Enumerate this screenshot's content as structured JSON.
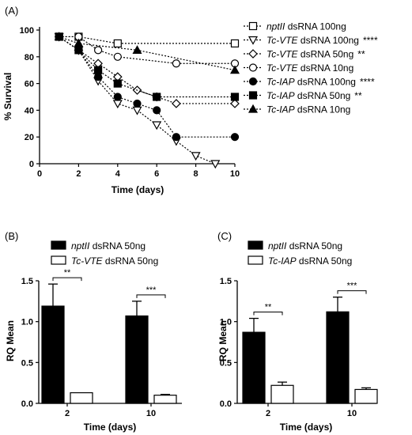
{
  "chart_data": [
    {
      "panel": "(A)",
      "type": "line",
      "xlabel": "Time (days)",
      "ylabel": "% Survival",
      "xlim": [
        0,
        10
      ],
      "ylim": [
        0,
        100
      ],
      "xticks": [
        "0",
        "2",
        "4",
        "6",
        "8",
        "10"
      ],
      "yticks": [
        "0",
        "20",
        "40",
        "60",
        "80",
        "100"
      ],
      "legend_position": "right",
      "series": [
        {
          "name_italic": "nptII",
          "name_rest": " dsRNA 100ng",
          "sig": "",
          "marker": "square-open",
          "x": [
            1,
            2,
            4,
            10
          ],
          "y": [
            95,
            95,
            90,
            90
          ]
        },
        {
          "name_italic": "Tc-VTE",
          "name_rest": " dsRNA 100ng",
          "sig": "****",
          "marker": "triangle-down-open",
          "x": [
            1,
            2,
            3,
            4,
            5,
            6,
            7,
            8,
            9
          ],
          "y": [
            95,
            85,
            62,
            45,
            40,
            29,
            17,
            6,
            0
          ]
        },
        {
          "name_italic": "Tc-VTE",
          "name_rest": " dsRNA  50ng",
          "sig": "**",
          "marker": "diamond-open",
          "x": [
            1,
            2,
            3,
            4,
            5,
            6,
            7,
            10
          ],
          "y": [
            95,
            85,
            75,
            65,
            55,
            50,
            45,
            45
          ]
        },
        {
          "name_italic": "Tc-VTE",
          "name_rest": " dsRNA 10ng",
          "sig": "",
          "marker": "circle-open",
          "x": [
            1,
            2,
            3,
            4,
            7,
            10
          ],
          "y": [
            95,
            95,
            85,
            80,
            75,
            75
          ]
        },
        {
          "name_italic": "Tc-IAP",
          "name_rest": " dsRNA 100ng",
          "sig": "****",
          "marker": "circle-filled",
          "x": [
            1,
            2,
            3,
            4,
            5,
            6,
            7,
            10
          ],
          "y": [
            95,
            85,
            65,
            50,
            45,
            40,
            20,
            20
          ]
        },
        {
          "name_italic": "Tc-IAP",
          "name_rest": " dsRNA 50ng",
          "sig": "**",
          "marker": "square-filled",
          "x": [
            1,
            2,
            3,
            4,
            6,
            10
          ],
          "y": [
            95,
            85,
            70,
            60,
            50,
            50
          ]
        },
        {
          "name_italic": "Tc-IAP",
          "name_rest": " dsRNA 10ng",
          "sig": "",
          "marker": "triangle-up-filled",
          "x": [
            1,
            2,
            5,
            10
          ],
          "y": [
            95,
            90,
            85,
            70
          ]
        }
      ]
    },
    {
      "panel": "(B)",
      "type": "bar",
      "categories": [
        "2",
        "10"
      ],
      "xlabel": "Time (days)",
      "ylabel": "RQ Mean",
      "ylim": [
        0,
        1.5
      ],
      "yticks": [
        "0.0",
        "0.5",
        "1.0",
        "1.5"
      ],
      "legend_position": "top",
      "series": [
        {
          "name_italic": "nptII",
          "name_rest": " dsRNA 50ng",
          "fill": "#000000",
          "values": [
            1.19,
            1.07
          ],
          "errors": [
            0.27,
            0.18
          ]
        },
        {
          "name_italic": "Tc-VTE",
          "name_rest": " dsRNA 50ng",
          "fill": "#ffffff",
          "values": [
            0.13,
            0.1
          ],
          "errors": [
            0.0,
            0.01
          ]
        }
      ],
      "significance": [
        "**",
        "***"
      ]
    },
    {
      "panel": "(C)",
      "type": "bar",
      "categories": [
        "2",
        "10"
      ],
      "xlabel": "Time (days)",
      "ylabel": "RQ Mean",
      "ylim": [
        0,
        1.5
      ],
      "yticks": [
        "0.0",
        "0.5",
        "1.0",
        "1.5"
      ],
      "legend_position": "top",
      "series": [
        {
          "name_italic": "nptII",
          "name_rest": " dsRNA 50ng",
          "fill": "#000000",
          "values": [
            0.87,
            1.12
          ],
          "errors": [
            0.17,
            0.18
          ]
        },
        {
          "name_italic": "Tc-IAP",
          "name_rest": " dsRNA 50ng",
          "fill": "#ffffff",
          "values": [
            0.22,
            0.17
          ],
          "errors": [
            0.04,
            0.02
          ]
        }
      ],
      "significance": [
        "**",
        "***"
      ]
    }
  ]
}
